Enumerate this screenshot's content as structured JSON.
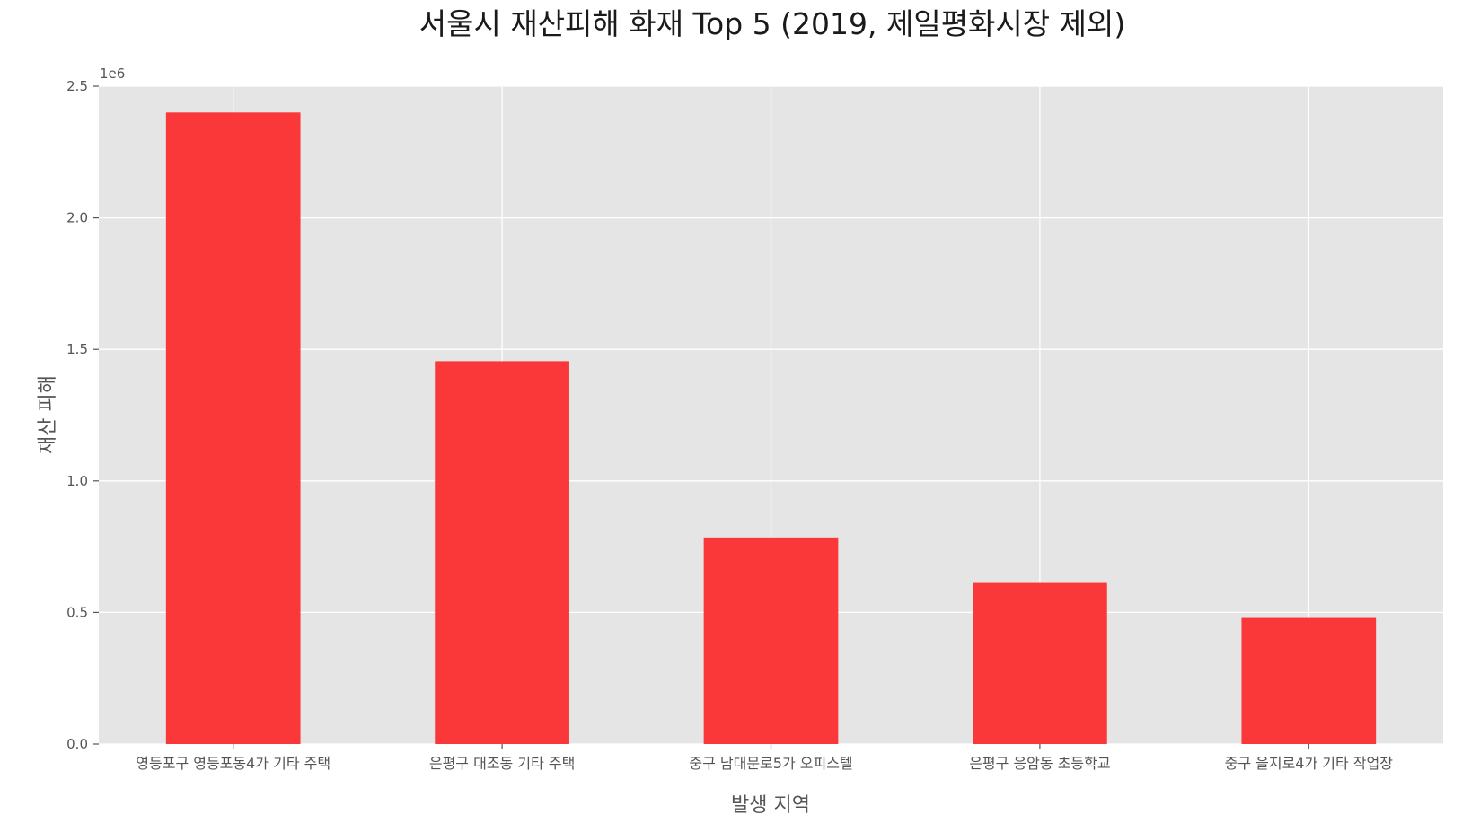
{
  "chart_data": {
    "type": "bar",
    "title": "서울시 재산피해 화재 Top 5 (2019, 제일평화시장 제외)",
    "xlabel": "발생 지역",
    "ylabel": "재산 피해",
    "axis_offset_label": "1e6",
    "categories": [
      "영등포구 영등포동4가 기타 주택",
      "은평구 대조동 기타 주택",
      "중구 남대문로5가 오피스텔",
      "은평구 응암동 초등학교",
      "중구 을지로4가 기타 작업장"
    ],
    "values": [
      2400000,
      1455000,
      785000,
      612000,
      479000
    ],
    "ylim": [
      0,
      2500000
    ],
    "yticks": [
      0,
      500000,
      1000000,
      1500000,
      2000000,
      2500000
    ],
    "ytick_labels": [
      "0.0",
      "0.5",
      "1.0",
      "1.5",
      "2.0",
      "2.5"
    ],
    "grid": true,
    "legend": "none",
    "colors": {
      "bar": "#fb2d2f",
      "plot_background": "#e5e5e5",
      "grid": "#ffffff",
      "text": "#555555",
      "title": "#1a1a1a"
    }
  }
}
